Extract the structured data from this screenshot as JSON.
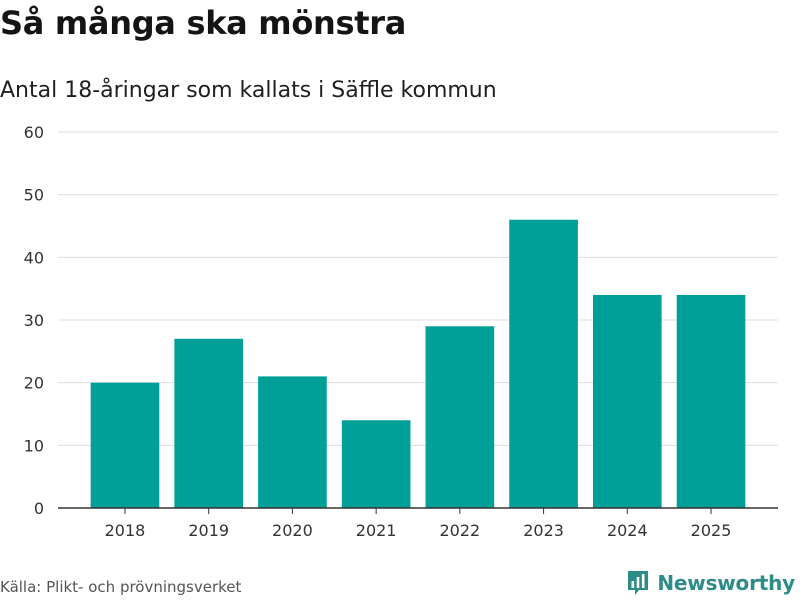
{
  "title": "Så många ska mönstra",
  "subtitle": "Antal 18-åringar som kallats i Säffle kommun",
  "source": "Källa: Plikt- och prövningsverket",
  "brand": {
    "name": "Newsworthy",
    "color": "#2d8c86",
    "icon": "newsworthy-logo-icon"
  },
  "colors": {
    "bar": "#00a098",
    "grid": "#dddddd",
    "axis": "#333333"
  },
  "chart_data": {
    "type": "bar",
    "title": "Så många ska mönstra",
    "subtitle": "Antal 18-åringar som kallats i Säffle kommun",
    "xlabel": "",
    "ylabel": "",
    "categories": [
      "2018",
      "2019",
      "2020",
      "2021",
      "2022",
      "2023",
      "2024",
      "2025"
    ],
    "values": [
      20,
      27,
      21,
      14,
      29,
      46,
      34,
      34
    ],
    "ylim": [
      0,
      60
    ],
    "yticks": [
      0,
      10,
      20,
      30,
      40,
      50,
      60
    ],
    "grid": true,
    "legend": "none"
  }
}
